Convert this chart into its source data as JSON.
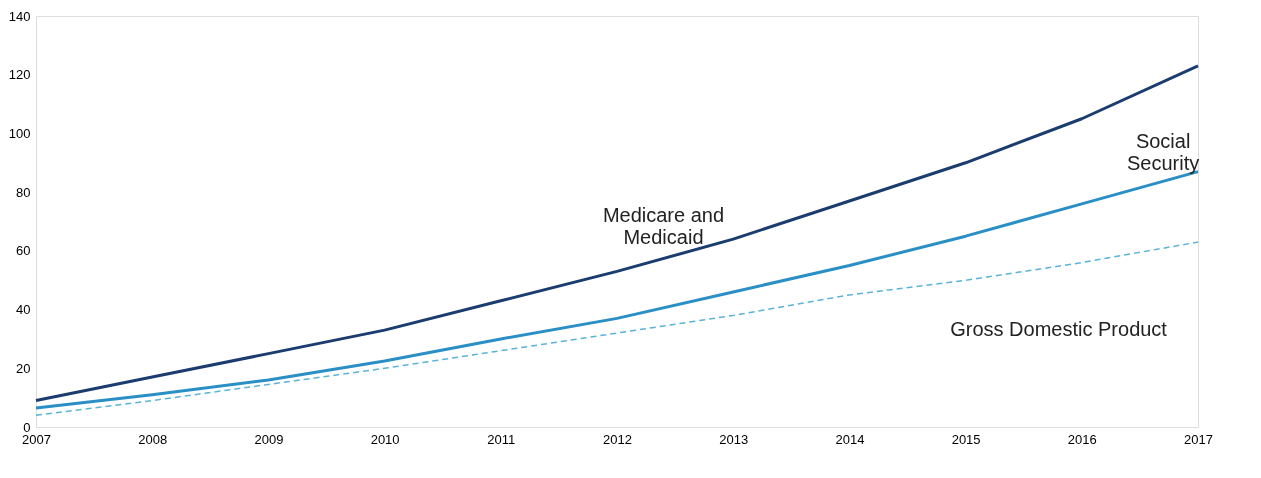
{
  "chart_data": {
    "type": "line",
    "x": [
      2007,
      2008,
      2009,
      2010,
      2011,
      2012,
      2013,
      2014,
      2015,
      2016,
      2017
    ],
    "xlim": [
      2007,
      2017
    ],
    "xticks": [
      2007,
      2008,
      2009,
      2010,
      2011,
      2012,
      2013,
      2014,
      2015,
      2016,
      2017
    ],
    "ylim": [
      0,
      140
    ],
    "yticks": [
      0,
      20,
      40,
      60,
      80,
      100,
      120,
      140
    ],
    "grid": false,
    "legend": false,
    "marker": "none",
    "series": [
      {
        "name": "Medicare and\nMedicaid",
        "color": "#1b3c6e",
        "line_style": "solid",
        "values": [
          9,
          17,
          25,
          33,
          43,
          53,
          64,
          77,
          90,
          105,
          123
        ]
      },
      {
        "name": "Social\nSecurity",
        "color": "#2a8fc4",
        "line_style": "solid",
        "values": [
          6.5,
          11,
          16,
          22.5,
          30,
          37,
          46,
          55,
          65,
          76,
          87
        ]
      },
      {
        "name": "Gross Domestic Product",
        "color": "#5ab4d6",
        "line_style": "dashed",
        "values": [
          4,
          9,
          14.5,
          20,
          26,
          32,
          38,
          45,
          50,
          56,
          63
        ]
      }
    ]
  }
}
